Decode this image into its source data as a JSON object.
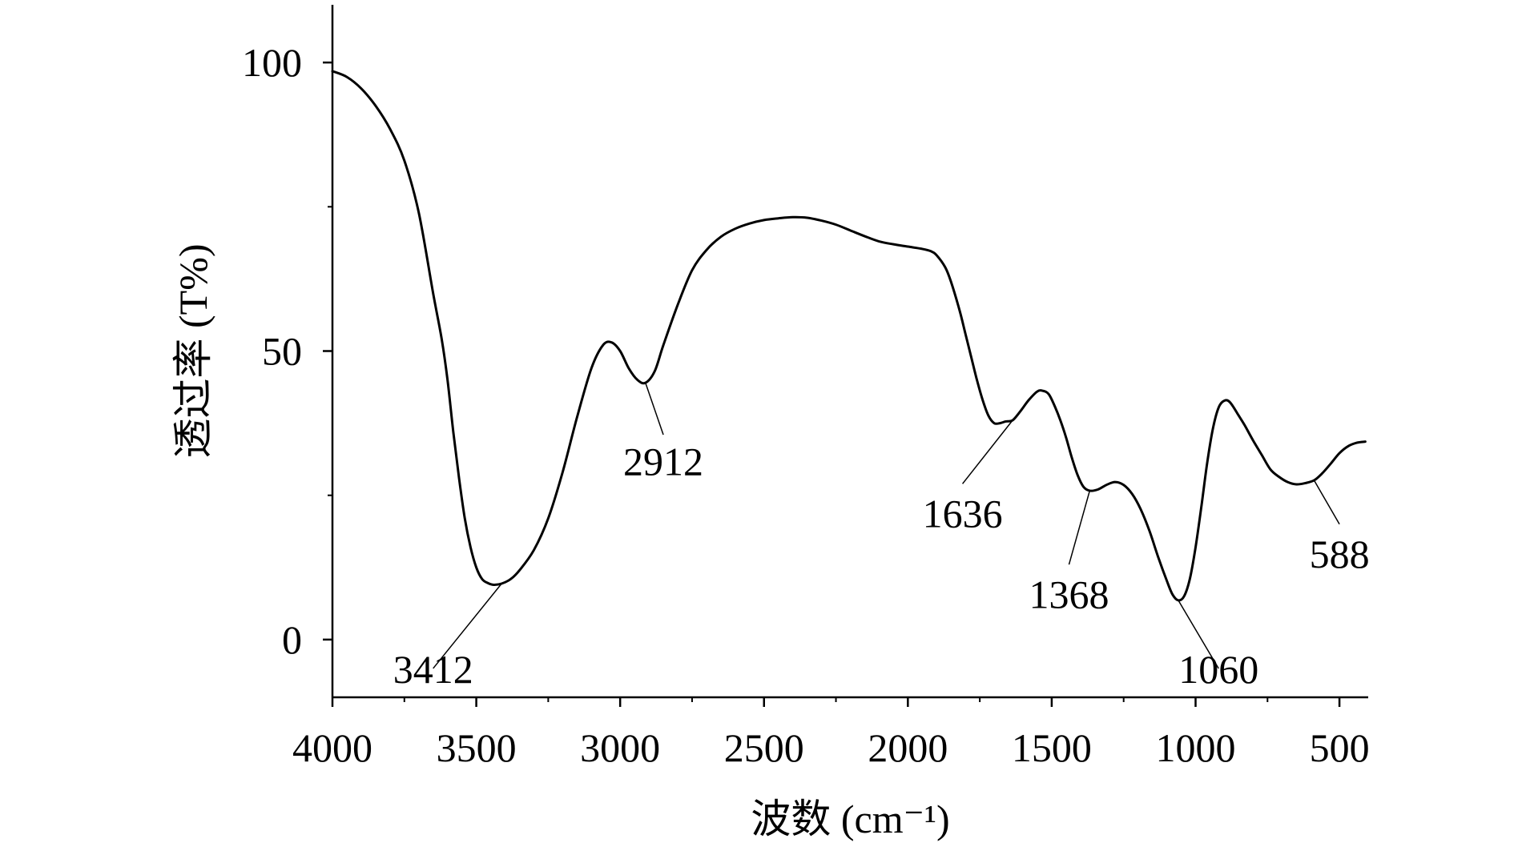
{
  "chart_data": {
    "type": "line",
    "xlabel": "波数 (cm⁻¹)",
    "ylabel": "透过率 (T%)",
    "xlim": [
      4000,
      400
    ],
    "ylim": [
      -10,
      110
    ],
    "x_ticks": [
      4000,
      3500,
      3000,
      2500,
      2000,
      1500,
      1000,
      500
    ],
    "x_minor_ticks": [
      3750,
      3250,
      2750,
      2250,
      1750,
      1250,
      750
    ],
    "y_ticks": [
      0,
      50,
      100
    ],
    "y_minor_ticks": [
      25,
      75
    ],
    "x_tick_labels": [
      "4000",
      "3500",
      "3000",
      "2500",
      "2000",
      "1500",
      "1000",
      "500"
    ],
    "y_tick_labels": [
      "0",
      "50",
      "100"
    ],
    "grid": false,
    "line_color": "#000000",
    "series": [
      {
        "x": [
          4000,
          3950,
          3900,
          3850,
          3800,
          3750,
          3700,
          3650,
          3620,
          3600,
          3580,
          3560,
          3540,
          3520,
          3500,
          3480,
          3460,
          3440,
          3412,
          3380,
          3350,
          3300,
          3250,
          3200,
          3150,
          3100,
          3060,
          3030,
          3000,
          2970,
          2940,
          2912,
          2880,
          2850,
          2800,
          2750,
          2700,
          2650,
          2600,
          2550,
          2500,
          2450,
          2400,
          2350,
          2300,
          2250,
          2200,
          2150,
          2100,
          2050,
          2000,
          1950,
          1920,
          1900,
          1870,
          1850,
          1820,
          1800,
          1780,
          1760,
          1740,
          1720,
          1700,
          1680,
          1660,
          1636,
          1610,
          1580,
          1550,
          1530,
          1510,
          1490,
          1470,
          1450,
          1430,
          1410,
          1390,
          1368,
          1340,
          1310,
          1280,
          1250,
          1220,
          1190,
          1160,
          1130,
          1100,
          1080,
          1060,
          1040,
          1020,
          1000,
          980,
          960,
          940,
          920,
          900,
          880,
          850,
          830,
          800,
          770,
          740,
          710,
          680,
          650,
          620,
          588,
          560,
          530,
          500,
          470,
          440,
          410
        ],
        "y": [
          98.5,
          97.5,
          95.5,
          92.5,
          88.5,
          83,
          74,
          60,
          52,
          45,
          36,
          28,
          21,
          16,
          12.5,
          10.5,
          9.8,
          9.5,
          9.7,
          10.5,
          12,
          15.5,
          21,
          29,
          38.5,
          47,
          51,
          51.5,
          50,
          47,
          45,
          44.5,
          46.5,
          51,
          58,
          64,
          67.5,
          69.8,
          71.2,
          72.1,
          72.7,
          73,
          73.2,
          73.1,
          72.6,
          71.9,
          70.9,
          69.9,
          69,
          68.5,
          68.1,
          67.7,
          67.3,
          66.6,
          64.5,
          62,
          57,
          53,
          49,
          45,
          41.5,
          38.8,
          37.5,
          37.5,
          37.8,
          38,
          39.5,
          41.5,
          43,
          43.1,
          42.5,
          40.5,
          38,
          35,
          31.5,
          28.5,
          26.5,
          25.8,
          26,
          26.8,
          27.3,
          26.8,
          25.2,
          22.5,
          18.8,
          14.3,
          10.2,
          7.8,
          6.8,
          7.5,
          10.5,
          16,
          23,
          30.5,
          36.5,
          40.2,
          41.4,
          41.1,
          38.8,
          37.2,
          34.5,
          32,
          29.5,
          28.2,
          27.3,
          26.9,
          27.1,
          27.6,
          28.8,
          30.5,
          32.3,
          33.5,
          34.1,
          34.3
        ]
      }
    ],
    "annotations": [
      {
        "text": "3412",
        "x": 3412,
        "y": 9.7
      },
      {
        "text": "2912",
        "x": 2912,
        "y": 44.5
      },
      {
        "text": "1636",
        "x": 1636,
        "y": 38
      },
      {
        "text": "1368",
        "x": 1368,
        "y": 25.8
      },
      {
        "text": "1060",
        "x": 1060,
        "y": 6.8
      },
      {
        "text": "588",
        "x": 588,
        "y": 27.6
      }
    ]
  }
}
